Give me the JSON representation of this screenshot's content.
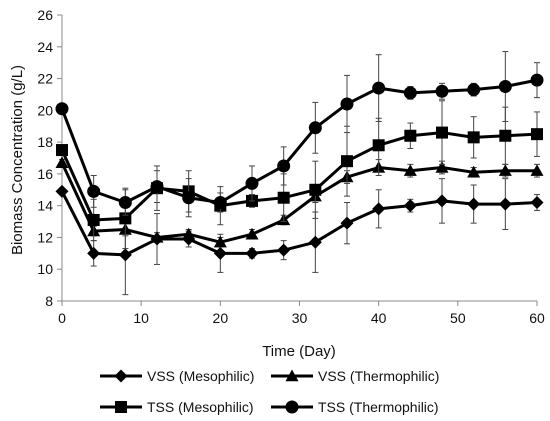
{
  "chart_data": {
    "type": "line",
    "title": "",
    "xlabel": "Time (Day)",
    "ylabel": "Biomass Concentration (g/L)",
    "xlim": [
      0,
      60
    ],
    "ylim": [
      8,
      26
    ],
    "xticks": [
      0,
      10,
      20,
      30,
      40,
      50,
      60
    ],
    "yticks": [
      8,
      10,
      12,
      14,
      16,
      18,
      20,
      22,
      24,
      26
    ],
    "grid": false,
    "legend_position": "bottom",
    "x": [
      0,
      4,
      8,
      12,
      16,
      20,
      24,
      28,
      32,
      36,
      40,
      44,
      48,
      52,
      56,
      60
    ],
    "series": [
      {
        "name": "VSS (Mesophilic)",
        "marker": "diamond",
        "color": "#000000",
        "values": [
          14.9,
          11.0,
          10.9,
          11.9,
          11.9,
          11.0,
          11.0,
          11.2,
          11.7,
          12.9,
          13.8,
          14.0,
          14.3,
          14.1,
          14.1,
          14.2
        ],
        "errors": [
          0.2,
          0.8,
          2.5,
          1.6,
          0.5,
          1.2,
          0.3,
          0.6,
          1.9,
          1.3,
          1.2,
          0.4,
          1.4,
          1.2,
          1.6,
          0.5
        ]
      },
      {
        "name": "VSS (Thermophilic)",
        "marker": "triangle",
        "color": "#000000",
        "values": [
          16.7,
          12.4,
          12.5,
          12.0,
          12.2,
          11.7,
          12.2,
          13.1,
          14.6,
          15.8,
          16.4,
          16.2,
          16.4,
          16.1,
          16.2,
          16.2
        ],
        "errors": [
          0.2,
          0.3,
          0.4,
          0.3,
          0.3,
          0.3,
          0.3,
          0.3,
          0.4,
          0.4,
          0.5,
          0.4,
          0.4,
          0.3,
          0.4,
          0.4
        ]
      },
      {
        "name": "TSS (Mesophilic)",
        "marker": "square",
        "color": "#000000",
        "values": [
          17.5,
          13.1,
          13.2,
          15.1,
          14.9,
          14.0,
          14.3,
          14.5,
          15.0,
          16.8,
          17.8,
          18.4,
          18.6,
          18.3,
          18.4,
          18.5
        ],
        "errors": [
          0.3,
          1.3,
          1.9,
          1.4,
          1.3,
          1.2,
          0.4,
          1.5,
          1.8,
          2.2,
          1.7,
          0.8,
          2.0,
          1.3,
          1.8,
          1.4
        ]
      },
      {
        "name": "TSS (Thermophilic)",
        "marker": "circle",
        "color": "#000000",
        "values": [
          20.1,
          14.9,
          14.2,
          15.2,
          14.5,
          14.2,
          15.4,
          16.5,
          18.9,
          20.4,
          21.4,
          21.1,
          21.2,
          21.3,
          21.5,
          21.9
        ],
        "errors": [
          0.3,
          1.0,
          0.8,
          1.0,
          1.2,
          0.6,
          1.1,
          1.2,
          1.6,
          1.8,
          2.1,
          0.4,
          0.5,
          0.4,
          2.2,
          1.1
        ]
      }
    ]
  }
}
